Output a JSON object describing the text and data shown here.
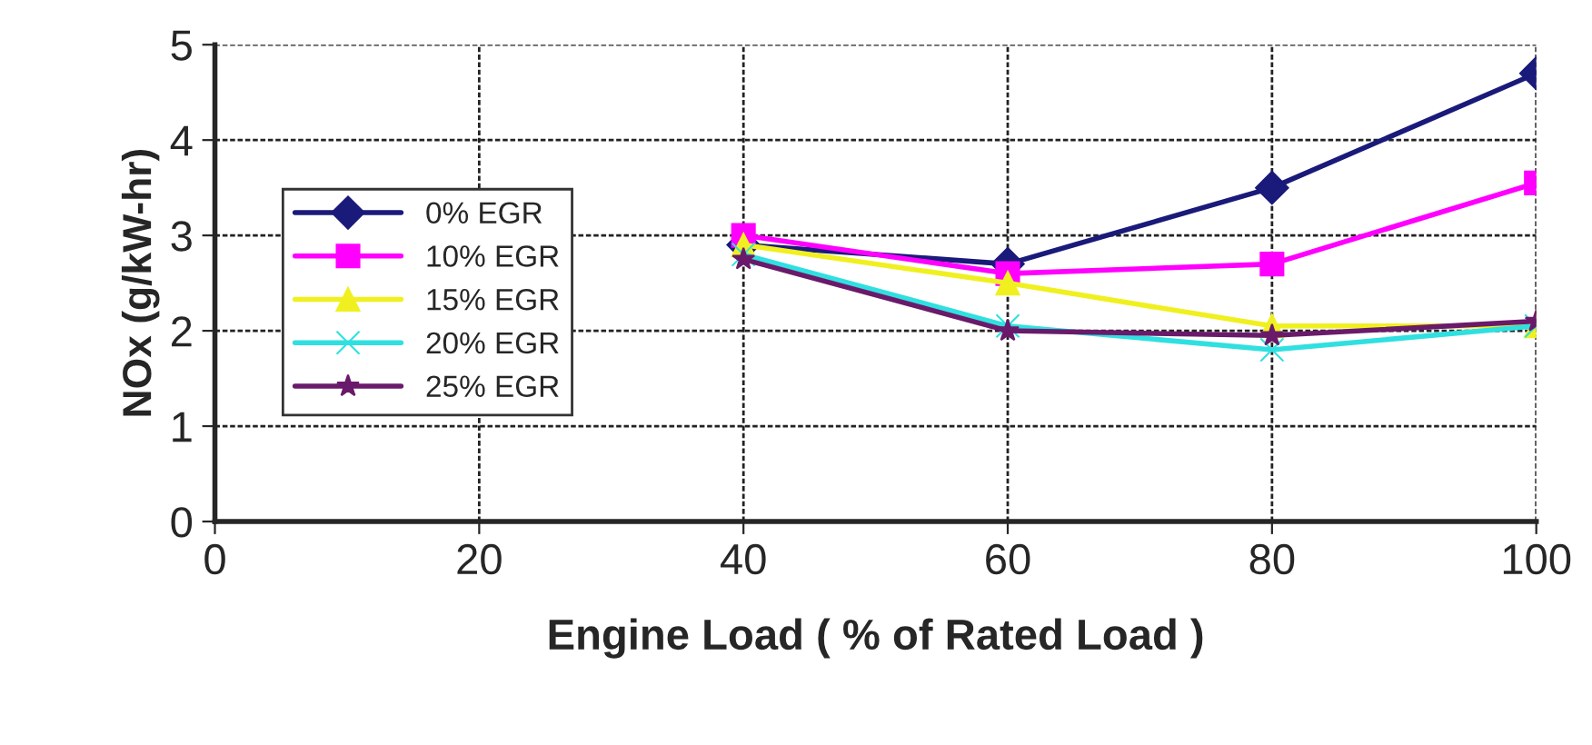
{
  "chart_data": {
    "type": "line",
    "xlabel": "Engine Load ( % of Rated Load )",
    "ylabel": "NOx (g/kW-hr)",
    "x": [
      40,
      60,
      80,
      100
    ],
    "series": [
      {
        "name": "0% EGR",
        "color": "#1a1a7a",
        "marker": "diamond",
        "values": [
          2.9,
          2.7,
          3.5,
          4.7
        ]
      },
      {
        "name": "10% EGR",
        "color": "#ff00ff",
        "marker": "square",
        "values": [
          3.0,
          2.6,
          2.7,
          3.55
        ]
      },
      {
        "name": "15% EGR",
        "color": "#f0f020",
        "marker": "triangle",
        "values": [
          2.9,
          2.5,
          2.05,
          2.05
        ]
      },
      {
        "name": "20% EGR",
        "color": "#30e0e0",
        "marker": "cross",
        "values": [
          2.8,
          2.05,
          1.8,
          2.05
        ]
      },
      {
        "name": "25% EGR",
        "color": "#6a1a6a",
        "marker": "star",
        "values": [
          2.75,
          2.0,
          1.95,
          2.1
        ]
      }
    ],
    "xlim": [
      0,
      100
    ],
    "xticks": [
      0,
      20,
      40,
      60,
      80,
      100
    ],
    "ylim": [
      0,
      5
    ],
    "yticks": [
      0,
      1,
      2,
      3,
      4,
      5
    ],
    "grid": true,
    "legend": "center left",
    "line_style": "solid"
  }
}
